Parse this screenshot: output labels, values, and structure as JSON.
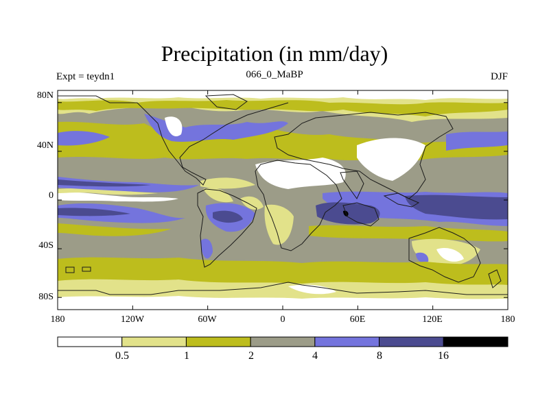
{
  "title": "Precipitation (in mm/day)",
  "subtitle_left": "Expt = teydn1",
  "subtitle_center": "066_0_MaBP",
  "subtitle_right": "DJF",
  "lat_ticks": [
    {
      "value": 80,
      "label": "80N"
    },
    {
      "value": 40,
      "label": "40N"
    },
    {
      "value": 0,
      "label": "0"
    },
    {
      "value": -40,
      "label": "40S"
    },
    {
      "value": -80,
      "label": "80S"
    }
  ],
  "lon_ticks": [
    {
      "value": -180,
      "label": "180"
    },
    {
      "value": -120,
      "label": "120W"
    },
    {
      "value": -60,
      "label": "60W"
    },
    {
      "value": 0,
      "label": "0"
    },
    {
      "value": 60,
      "label": "60E"
    },
    {
      "value": 120,
      "label": "120E"
    },
    {
      "value": 180,
      "label": "180"
    }
  ],
  "colorbar": {
    "levels": [
      "0.5",
      "1",
      "2",
      "4",
      "8",
      "16"
    ],
    "colors": [
      "#ffffff",
      "#e2e28a",
      "#bdbd1d",
      "#9c9c88",
      "#7474dd",
      "#4b4b90",
      "#000000"
    ]
  },
  "map_colors": {
    "white": "#ffffff",
    "pale_yellow": "#e2e28a",
    "olive": "#bdbd1d",
    "gray": "#9c9c88",
    "blue": "#7474dd",
    "navy": "#4b4b90",
    "black": "#000000",
    "coast": "#1a1a1a"
  }
}
